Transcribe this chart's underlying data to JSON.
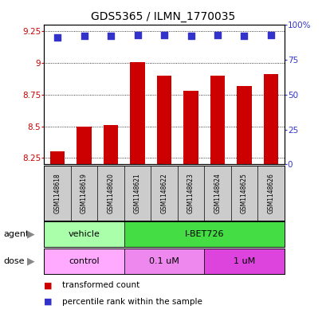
{
  "title": "GDS5365 / ILMN_1770035",
  "samples": [
    "GSM1148618",
    "GSM1148619",
    "GSM1148620",
    "GSM1148621",
    "GSM1148622",
    "GSM1148623",
    "GSM1148624",
    "GSM1148625",
    "GSM1148626"
  ],
  "bar_values": [
    8.3,
    8.5,
    8.51,
    9.01,
    8.9,
    8.78,
    8.9,
    8.82,
    8.91
  ],
  "percentile_values": [
    91,
    92,
    92,
    93,
    93,
    92,
    93,
    92,
    93
  ],
  "ylim_left": [
    8.2,
    9.3
  ],
  "ylim_right": [
    0,
    100
  ],
  "yticks_left": [
    8.25,
    8.5,
    8.75,
    9.0,
    9.25
  ],
  "yticks_right": [
    0,
    25,
    50,
    75,
    100
  ],
  "ytick_labels_left": [
    "8.25",
    "8.5",
    "8.75",
    "9",
    "9.25"
  ],
  "ytick_labels_right": [
    "0",
    "25",
    "50",
    "75",
    "100%"
  ],
  "bar_color": "#cc0000",
  "dot_color": "#3333cc",
  "agent_groups": [
    {
      "label": "vehicle",
      "start": 0,
      "end": 3,
      "color": "#aaffaa"
    },
    {
      "label": "I-BET726",
      "start": 3,
      "end": 9,
      "color": "#44dd44"
    }
  ],
  "agent_label": "agent",
  "dose_label": "dose",
  "dose_groups": [
    {
      "label": "control",
      "start": 0,
      "end": 3,
      "color": "#ffaaff"
    },
    {
      "label": "0.1 uM",
      "start": 3,
      "end": 6,
      "color": "#ee88ee"
    },
    {
      "label": "1 uM",
      "start": 6,
      "end": 9,
      "color": "#dd44dd"
    }
  ],
  "legend_items": [
    {
      "label": "transformed count",
      "color": "#cc0000"
    },
    {
      "label": "percentile rank within the sample",
      "color": "#3333cc"
    }
  ],
  "bar_width": 0.55,
  "dot_size": 30,
  "background_color": "#ffffff",
  "sample_box_color": "#cccccc",
  "ylabel_left_color": "#cc0000",
  "ylabel_right_color": "#3333cc"
}
